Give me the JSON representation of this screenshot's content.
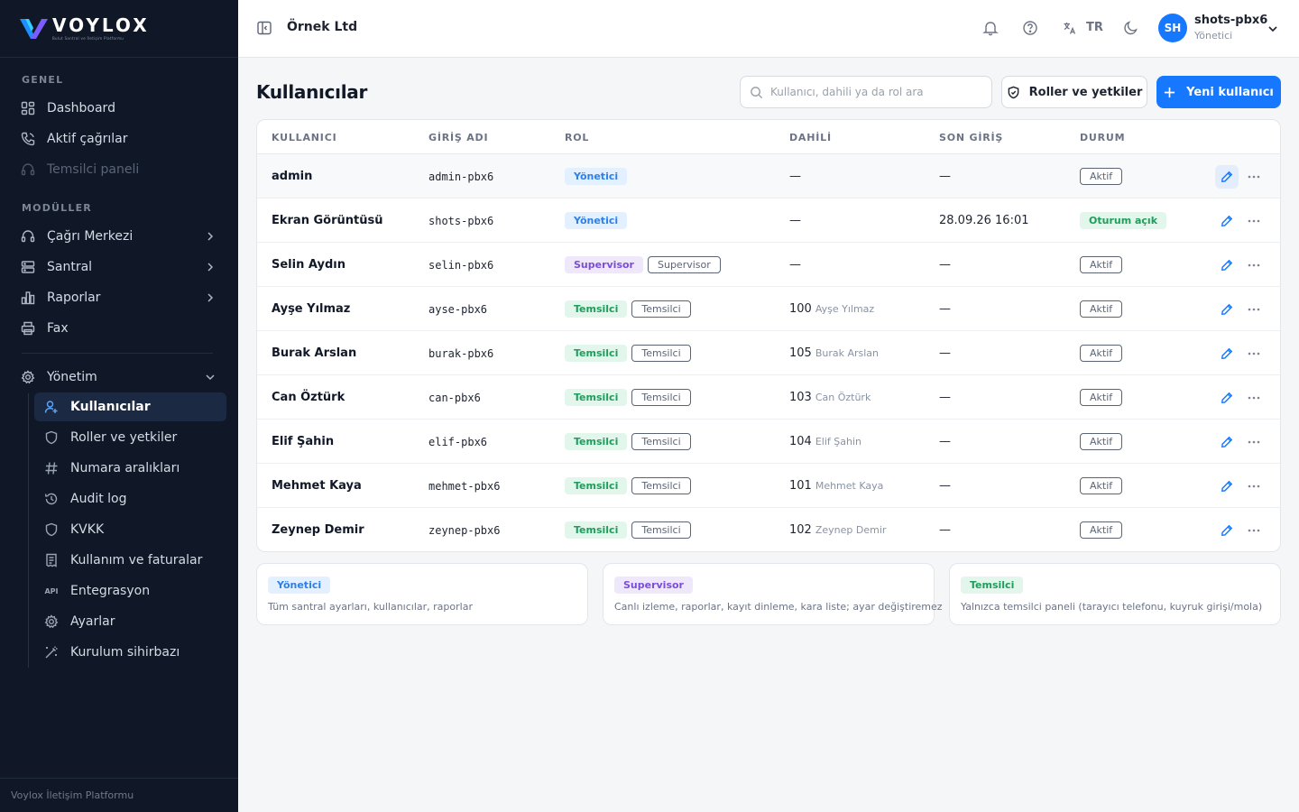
{
  "app": {
    "logo_word": "VOYLOX",
    "logo_tagline": "Bulut Santral ve İletişim Platformu",
    "footer": "Voylox İletişim Platformu"
  },
  "sidebar": {
    "section_general": "GENEL",
    "section_modules": "MODÜLLER",
    "general_items": [
      {
        "label": "Dashboard",
        "icon": "grid-icon"
      },
      {
        "label": "Aktif çağrılar",
        "icon": "phone-icon"
      },
      {
        "label": "Temsilci paneli",
        "icon": "headset-icon",
        "disabled": true
      }
    ],
    "module_items": [
      {
        "label": "Çağrı Merkezi",
        "icon": "headset-icon"
      },
      {
        "label": "Santral",
        "icon": "server-icon"
      },
      {
        "label": "Raporlar",
        "icon": "chart-icon"
      },
      {
        "label": "Fax",
        "icon": "printer-icon"
      }
    ],
    "admin": {
      "label": "Yönetim",
      "items": [
        {
          "label": "Kullanıcılar",
          "icon": "user-icon",
          "active": true
        },
        {
          "label": "Roller ve yetkiler",
          "icon": "shield-icon"
        },
        {
          "label": "Numara aralıkları",
          "icon": "hash-icon"
        },
        {
          "label": "Audit log",
          "icon": "history-icon"
        },
        {
          "label": "KVKK",
          "icon": "shield-icon"
        },
        {
          "label": "Kullanım ve faturalar",
          "icon": "receipt-icon"
        },
        {
          "label": "Entegrasyon",
          "icon": "api-icon"
        },
        {
          "label": "Ayarlar",
          "icon": "gear-icon"
        },
        {
          "label": "Kurulum sihirbazı",
          "icon": "wand-icon"
        }
      ]
    }
  },
  "header": {
    "company": "Örnek Ltd",
    "language": "TR",
    "user_initials": "SH",
    "user_name": "shots-pbx6",
    "user_role": "Yönetici"
  },
  "main": {
    "title": "Kullanıcılar",
    "search_placeholder": "Kullanıcı, dahili ya da rol ara",
    "roles_button": "Roller ve yetkiler",
    "new_user_button": "Yeni kullanıcı",
    "columns": [
      "KULLANICI",
      "GİRİŞ ADI",
      "ROL",
      "DAHİLİ",
      "SON GİRİŞ",
      "DURUM"
    ],
    "rows": [
      {
        "user": "admin",
        "login": "admin-pbx6",
        "role": "Yönetici",
        "role_type": "yon",
        "role_outline": "",
        "ext": "—",
        "ext_name": "",
        "last_login": "—",
        "status": "Aktif",
        "status_type": "outline",
        "selected": true
      },
      {
        "user": "Ekran Görüntüsü",
        "login": "shots-pbx6",
        "role": "Yönetici",
        "role_type": "yon",
        "role_outline": "",
        "ext": "—",
        "ext_name": "",
        "last_login": "28.09.26 16:01",
        "status": "Oturum açık",
        "status_type": "open"
      },
      {
        "user": "Selin Aydın",
        "login": "selin-pbx6",
        "role": "Supervisor",
        "role_type": "sup",
        "role_outline": "Supervisor",
        "ext": "—",
        "ext_name": "",
        "last_login": "—",
        "status": "Aktif",
        "status_type": "outline"
      },
      {
        "user": "Ayşe Yılmaz",
        "login": "ayse-pbx6",
        "role": "Temsilci",
        "role_type": "tem",
        "role_outline": "Temsilci",
        "ext": "100",
        "ext_name": "Ayşe Yılmaz",
        "last_login": "—",
        "status": "Aktif",
        "status_type": "outline"
      },
      {
        "user": "Burak Arslan",
        "login": "burak-pbx6",
        "role": "Temsilci",
        "role_type": "tem",
        "role_outline": "Temsilci",
        "ext": "105",
        "ext_name": "Burak Arslan",
        "last_login": "—",
        "status": "Aktif",
        "status_type": "outline"
      },
      {
        "user": "Can Öztürk",
        "login": "can-pbx6",
        "role": "Temsilci",
        "role_type": "tem",
        "role_outline": "Temsilci",
        "ext": "103",
        "ext_name": "Can Öztürk",
        "last_login": "—",
        "status": "Aktif",
        "status_type": "outline"
      },
      {
        "user": "Elif Şahin",
        "login": "elif-pbx6",
        "role": "Temsilci",
        "role_type": "tem",
        "role_outline": "Temsilci",
        "ext": "104",
        "ext_name": "Elif Şahin",
        "last_login": "—",
        "status": "Aktif",
        "status_type": "outline"
      },
      {
        "user": "Mehmet Kaya",
        "login": "mehmet-pbx6",
        "role": "Temsilci",
        "role_type": "tem",
        "role_outline": "Temsilci",
        "ext": "101",
        "ext_name": "Mehmet Kaya",
        "last_login": "—",
        "status": "Aktif",
        "status_type": "outline"
      },
      {
        "user": "Zeynep Demir",
        "login": "zeynep-pbx6",
        "role": "Temsilci",
        "role_type": "tem",
        "role_outline": "Temsilci",
        "ext": "102",
        "ext_name": "Zeynep Demir",
        "last_login": "—",
        "status": "Aktif",
        "status_type": "outline"
      }
    ],
    "role_legend": [
      {
        "role": "Yönetici",
        "role_type": "yon",
        "description": "Tüm santral ayarları, kullanıcılar, raporlar"
      },
      {
        "role": "Supervisor",
        "role_type": "sup",
        "description": "Canlı izleme, raporlar, kayıt dinleme, kara liste; ayar değiştiremez"
      },
      {
        "role": "Temsilci",
        "role_type": "tem",
        "description": "Yalnızca temsilci paneli (tarayıcı telefonu, kuyruk girişi/mola)"
      }
    ]
  },
  "colors": {
    "sidebar_bg": "#101827",
    "accent": "#1677ff",
    "role_yonetici": "#2f7fe6",
    "role_supervisor": "#7b4ed6",
    "role_temsilci": "#1f9d5c"
  }
}
